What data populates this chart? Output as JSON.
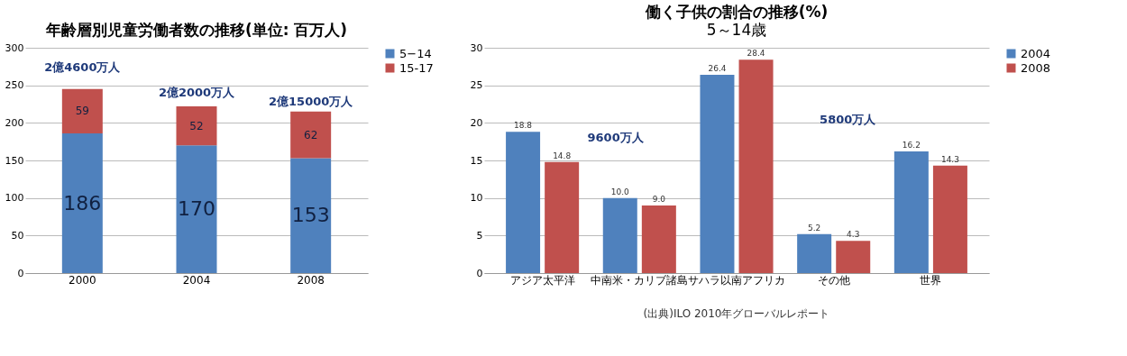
{
  "chart_data": [
    {
      "type": "bar",
      "title": "年齢層別児童労働者数の推移(単位: 百万人)",
      "categories": [
        "2000",
        "2004",
        "2008"
      ],
      "stacked": true,
      "data_labels": true,
      "legend": "right",
      "grid": "y",
      "ylim": [
        0,
        300
      ],
      "yticks": [
        0,
        50,
        100,
        150,
        200,
        250,
        300
      ],
      "series": [
        {
          "name": "5−14",
          "color": "#4f81bd",
          "values": [
            186,
            170,
            153
          ]
        },
        {
          "name": "15-17",
          "color": "#c0504d",
          "values": [
            59,
            52,
            62
          ]
        }
      ],
      "annotations": [
        "2億4600万人",
        "2億2000万人",
        "2億15000万人"
      ]
    },
    {
      "type": "bar",
      "title": "働く子供の割合の推移(%)",
      "subtitle": "5～14歳",
      "categories": [
        "アジア太平洋",
        "中南米・カリブ諸島",
        "サハラ以南アフリカ",
        "その他",
        "世界"
      ],
      "data_labels": true,
      "legend": "right",
      "grid": "y",
      "ylim": [
        0,
        30
      ],
      "yticks": [
        0,
        5,
        10,
        15,
        20,
        25,
        30
      ],
      "series": [
        {
          "name": "2004",
          "color": "#4f81bd",
          "values": [
            18.8,
            10,
            26.4,
            5.2,
            16.2
          ],
          "value_labels": [
            "18.8",
            "10.0",
            "26.4",
            "5.2",
            "16.2"
          ]
        },
        {
          "name": "2008",
          "color": "#c0504d",
          "values": [
            14.8,
            9,
            28.4,
            4.3,
            14.3
          ],
          "value_labels": [
            "14.8",
            "9.0",
            "28.4",
            "4.3",
            "14.3"
          ]
        }
      ],
      "annotations": [
        "9600万人",
        "5800万人",
        "(出典)ILO 2010年グローバルレポート"
      ]
    }
  ]
}
